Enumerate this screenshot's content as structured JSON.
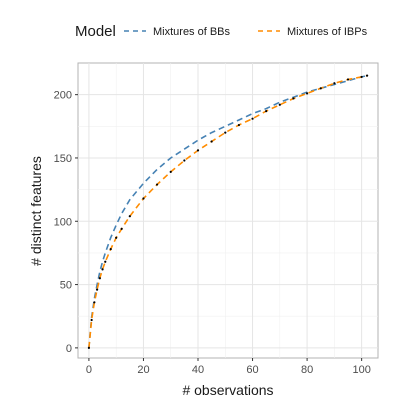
{
  "chart_data": {
    "type": "line",
    "xlabel": "# observations",
    "ylabel": "# distinct features",
    "xlim": [
      -4,
      106
    ],
    "ylim": [
      -8,
      225
    ],
    "x_ticks": [
      0,
      20,
      40,
      60,
      80,
      100
    ],
    "y_ticks": [
      0,
      50,
      100,
      150,
      200
    ],
    "grid": true,
    "legend": {
      "title": "Model",
      "placement": "top",
      "entries": [
        "Mixtures of BBs",
        "Mixtures of IBPs"
      ]
    },
    "observed": {
      "marker": "point",
      "color": "#000000",
      "x": [
        0,
        1,
        2,
        3,
        4,
        5,
        6,
        8,
        10,
        12,
        15,
        20,
        25,
        30,
        35,
        40,
        45,
        50,
        55,
        60,
        65,
        70,
        75,
        80,
        85,
        90,
        95,
        100,
        102
      ],
      "y": [
        0,
        22,
        36,
        46,
        55,
        62,
        68,
        78,
        87,
        94,
        104,
        118,
        129,
        139,
        148,
        156,
        163,
        170,
        176,
        181,
        187,
        192,
        197,
        201,
        205,
        209,
        212,
        214,
        215
      ]
    },
    "series": [
      {
        "name": "Mixtures of BBs",
        "color": "#4682b4",
        "dash": "dashed",
        "x": [
          0,
          1,
          2,
          3,
          4,
          5,
          6,
          8,
          10,
          12,
          15,
          20,
          25,
          30,
          35,
          40,
          45,
          50,
          55,
          60,
          65,
          70,
          75,
          80,
          85,
          90,
          95,
          100,
          102
        ],
        "y": [
          0,
          24,
          39,
          50,
          60,
          68,
          75,
          87,
          97,
          106,
          117,
          130,
          141,
          150,
          157,
          164,
          170,
          175,
          180,
          185,
          189,
          194,
          198,
          202,
          205,
          208,
          211,
          214,
          215
        ]
      },
      {
        "name": "Mixtures of IBPs",
        "color": "#ff8c00",
        "dash": "dashed",
        "x": [
          0,
          1,
          2,
          3,
          4,
          5,
          6,
          8,
          10,
          12,
          15,
          20,
          25,
          30,
          35,
          40,
          45,
          50,
          55,
          60,
          65,
          70,
          75,
          80,
          85,
          90,
          95,
          100,
          102
        ],
        "y": [
          0,
          22,
          36,
          46,
          55,
          62,
          68,
          78,
          87,
          94,
          104,
          118,
          129,
          139,
          148,
          156,
          163,
          170,
          176,
          181,
          187,
          192,
          197,
          201,
          205,
          209,
          212,
          214,
          215
        ]
      }
    ]
  }
}
